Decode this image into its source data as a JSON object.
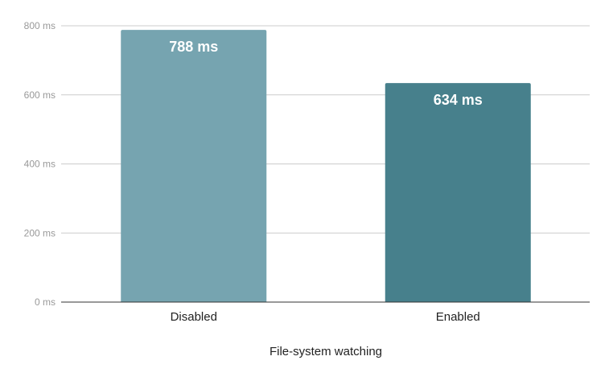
{
  "chart_data": {
    "type": "bar",
    "title": "",
    "xlabel": "File-system watching",
    "ylabel": "",
    "categories": [
      "Disabled",
      "Enabled"
    ],
    "values": [
      788,
      634
    ],
    "data_labels": [
      "788 ms",
      "634 ms"
    ],
    "colors": [
      "#76a4b0",
      "#47808c"
    ],
    "ylim": [
      0,
      800
    ],
    "yticks": [
      0,
      200,
      400,
      600,
      800
    ],
    "ytick_labels": [
      "0 ms",
      "200 ms",
      "400 ms",
      "600 ms",
      "800 ms"
    ],
    "grid": true,
    "legend": "none"
  }
}
